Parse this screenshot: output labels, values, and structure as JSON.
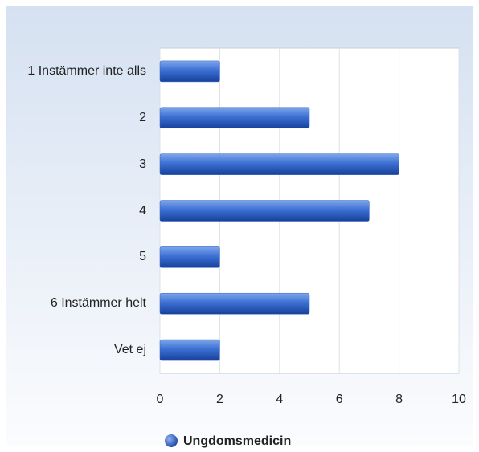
{
  "chart_data": {
    "type": "bar",
    "orientation": "horizontal",
    "categories": [
      "1 Instämmer inte alls",
      "2",
      "3",
      "4",
      "5",
      "6 Instämmer helt",
      "Vet ej"
    ],
    "series": [
      {
        "name": "Ungdomsmedicin",
        "color": "#2f64c8",
        "values": [
          2,
          5,
          8,
          7,
          2,
          5,
          2
        ]
      }
    ],
    "xlim": [
      0,
      10
    ],
    "xticks": [
      0,
      2,
      4,
      6,
      8,
      10
    ],
    "grid": true,
    "legend": "bottom"
  }
}
